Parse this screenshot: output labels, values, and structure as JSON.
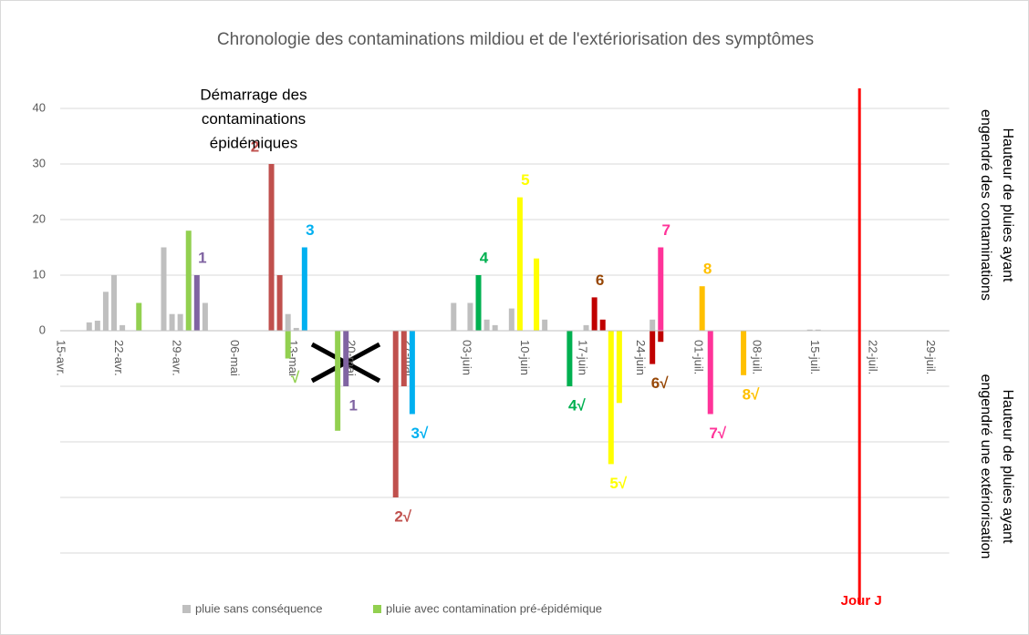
{
  "chart_data": {
    "type": "bar",
    "title": "Chronologie des contaminations mildiou et de l'extériorisation des symptômes",
    "y_title_top": [
      "Hauteur de pluies ayant",
      "engendré des contaminations"
    ],
    "y_title_bottom": [
      "Hauteur de pluies ayant",
      "engendré une extériorisation"
    ],
    "annotation": [
      "Démarrage des",
      "contaminations",
      "épidémiques"
    ],
    "marker": {
      "x": 96,
      "label": "Jour J",
      "color": "#ff0000"
    },
    "xlim": [
      0,
      108
    ],
    "xticks": [
      {
        "value": 0,
        "label": "15-avr."
      },
      {
        "value": 7,
        "label": "22-avr."
      },
      {
        "value": 14,
        "label": "29-avr."
      },
      {
        "value": 21,
        "label": "06-mai"
      },
      {
        "value": 28,
        "label": "13-mai"
      },
      {
        "value": 35,
        "label": "20-mai"
      },
      {
        "value": 42,
        "label": "27-mai"
      },
      {
        "value": 49,
        "label": "03-juin"
      },
      {
        "value": 56,
        "label": "10-juin"
      },
      {
        "value": 63,
        "label": "17-juin"
      },
      {
        "value": 70,
        "label": "24-juin"
      },
      {
        "value": 77,
        "label": "01-juil."
      },
      {
        "value": 84,
        "label": "08-juil."
      },
      {
        "value": 91,
        "label": "15-juil."
      },
      {
        "value": 98,
        "label": "22-juil."
      },
      {
        "value": 105,
        "label": "29-juil."
      }
    ],
    "ylim": [
      -50,
      45
    ],
    "yticks": [
      0,
      10,
      20,
      30,
      40
    ],
    "ygrid": [
      -10,
      -20,
      -30,
      -40
    ],
    "grid": true,
    "series": [
      {
        "name": "pluie sans conséquence",
        "color": "#bfbfbf",
        "x": [
          3,
          4,
          5,
          6,
          7,
          12,
          13,
          14,
          17,
          27,
          28,
          47,
          49,
          51,
          52,
          54,
          58,
          63,
          71,
          90,
          91
        ],
        "values": [
          1.5,
          1.8,
          7,
          10,
          1,
          15,
          3,
          3,
          5,
          3,
          0.5,
          5,
          5,
          2,
          1,
          4,
          2,
          1,
          2,
          0.2,
          0.2
        ]
      },
      {
        "name": "pluie avec contamination pré-épidémique",
        "color": "#92d050",
        "x": [
          9,
          15,
          27,
          33
        ],
        "values": [
          5,
          18,
          -5,
          -18
        ],
        "label_down": "√",
        "label_color": "#92d050"
      },
      {
        "color": "#8064a2",
        "x": [
          16,
          34
        ],
        "values": [
          10,
          -10
        ],
        "label_up": "1",
        "label_down": "1",
        "label_color": "#8064a2"
      },
      {
        "color": "#c0504d",
        "x": [
          25,
          26,
          40,
          41
        ],
        "values": [
          30,
          10,
          -30,
          -10
        ],
        "label_up": "2",
        "label_down": "2√",
        "label_color": "#c0504d"
      },
      {
        "color": "#00b0f0",
        "x": [
          29,
          42
        ],
        "values": [
          15,
          -15
        ],
        "label_up": "3",
        "label_down": "3√",
        "label_color": "#00b0f0"
      },
      {
        "color": "#00b050",
        "x": [
          50,
          61
        ],
        "values": [
          10,
          -10
        ],
        "label_up": "4",
        "label_down": "4√",
        "label_color": "#00b050"
      },
      {
        "color": "#ffff00",
        "x": [
          55,
          57,
          66,
          67
        ],
        "values": [
          24,
          13,
          -24,
          -13
        ],
        "label_up": "5",
        "label_down": "5√",
        "label_color": "#ffff00"
      },
      {
        "color": "#c00000",
        "x": [
          64,
          65,
          71,
          72
        ],
        "values": [
          6,
          2,
          -6,
          -2
        ],
        "label_up": "6",
        "label_down": "6√",
        "label_color": "#974706"
      },
      {
        "color": "#ff3399",
        "x": [
          72,
          78
        ],
        "values": [
          15,
          -15
        ],
        "label_up": "7",
        "label_down": "7√",
        "label_color": "#ff3399"
      },
      {
        "color": "#ffc000",
        "x": [
          77,
          82
        ],
        "values": [
          8,
          -8
        ],
        "label_up": "8",
        "label_down": "8√",
        "label_color": "#ffc000"
      }
    ]
  }
}
